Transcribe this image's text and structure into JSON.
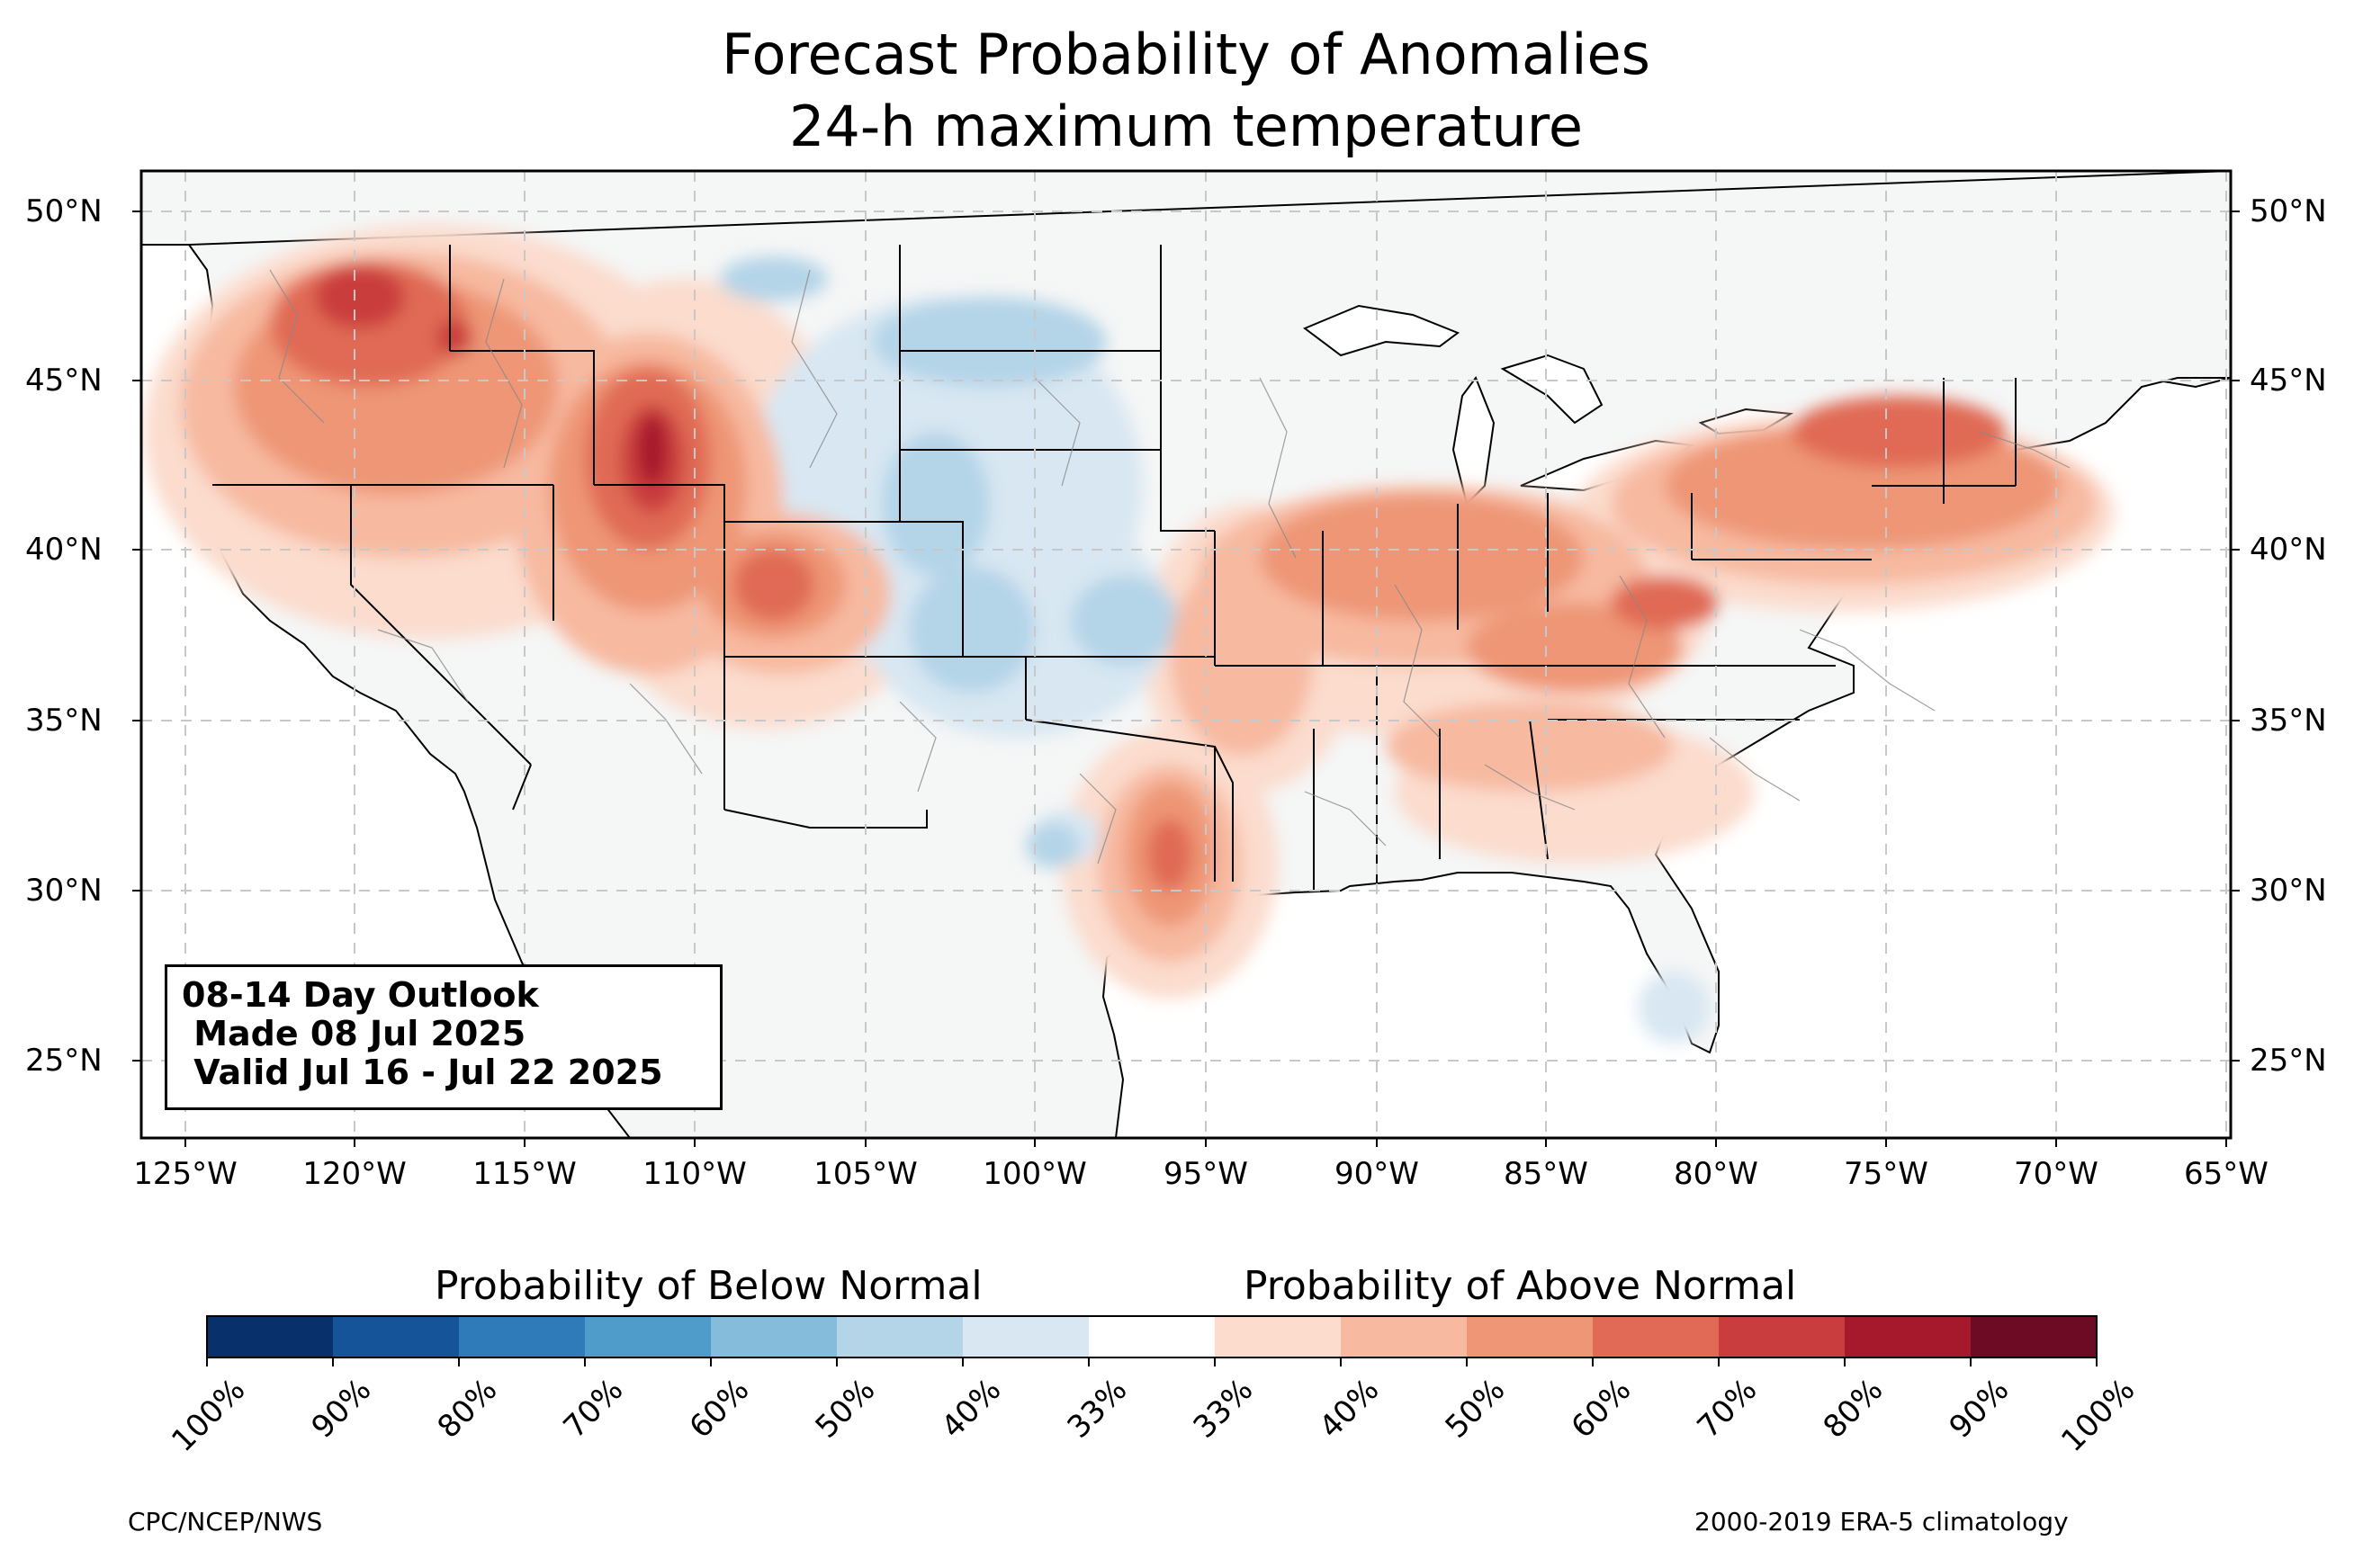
{
  "title_line1": "Forecast Probability of Anomalies",
  "title_line2": "24-h maximum temperature",
  "lat_labels": [
    "50°N",
    "45°N",
    "40°N",
    "35°N",
    "30°N",
    "25°N"
  ],
  "lon_labels": [
    "125°W",
    "120°W",
    "115°W",
    "110°W",
    "105°W",
    "100°W",
    "95°W",
    "90°W",
    "85°W",
    "80°W",
    "75°W",
    "70°W",
    "65°W"
  ],
  "info_box": {
    "line1": "08-14 Day Outlook",
    "line2": " Made 08 Jul 2025",
    "line3": " Valid Jul 16 - Jul 22 2025"
  },
  "legend": {
    "below_label": "Probability of Below Normal",
    "above_label": "Probability of Above Normal",
    "tick_labels": [
      "100%",
      "90%",
      "80%",
      "70%",
      "60%",
      "50%",
      "40%",
      "33%",
      "33%",
      "40%",
      "50%",
      "60%",
      "70%",
      "80%",
      "90%",
      "100%"
    ],
    "colors": [
      "#08306b",
      "#16549a",
      "#2f7bb9",
      "#4f9ccb",
      "#85bcdc",
      "#b4d4e8",
      "#d8e7f2",
      "#ffffff",
      "#fbdccd",
      "#f7b9a0",
      "#ee9676",
      "#e06a55",
      "#ca3d3e",
      "#a6182b",
      "#6d0a24"
    ]
  },
  "footer_left": "CPC/NCEP/NWS",
  "footer_right": "2000-2019 ERA-5 climatology",
  "map_colors": {
    "land": "#f5f6f6",
    "ocean": "#ffffff",
    "border": "#000000",
    "county": "#888888",
    "grid": "#c8c8c8"
  }
}
